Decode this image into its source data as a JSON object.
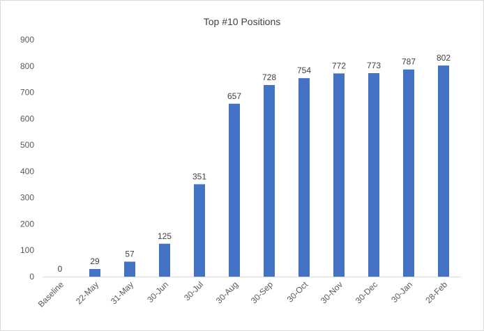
{
  "chart_data": {
    "type": "bar",
    "title": "Top #10 Positions",
    "xlabel": "",
    "ylabel": "",
    "categories": [
      "Baseline",
      "22-May",
      "31-May",
      "30-Jun",
      "30-Jul",
      "30-Aug",
      "30-Sep",
      "30-Oct",
      "30-Nov",
      "30-Dec",
      "30-Jan",
      "28-Feb"
    ],
    "values": [
      0,
      29,
      57,
      125,
      351,
      657,
      728,
      754,
      772,
      773,
      787,
      802
    ],
    "ylim": [
      0,
      900
    ],
    "yticks": [
      0,
      100,
      200,
      300,
      400,
      500,
      600,
      700,
      800,
      900
    ],
    "grid": false,
    "legend": "none",
    "bar_color": "#4472c4",
    "axis_color": "#d9d9d9"
  }
}
